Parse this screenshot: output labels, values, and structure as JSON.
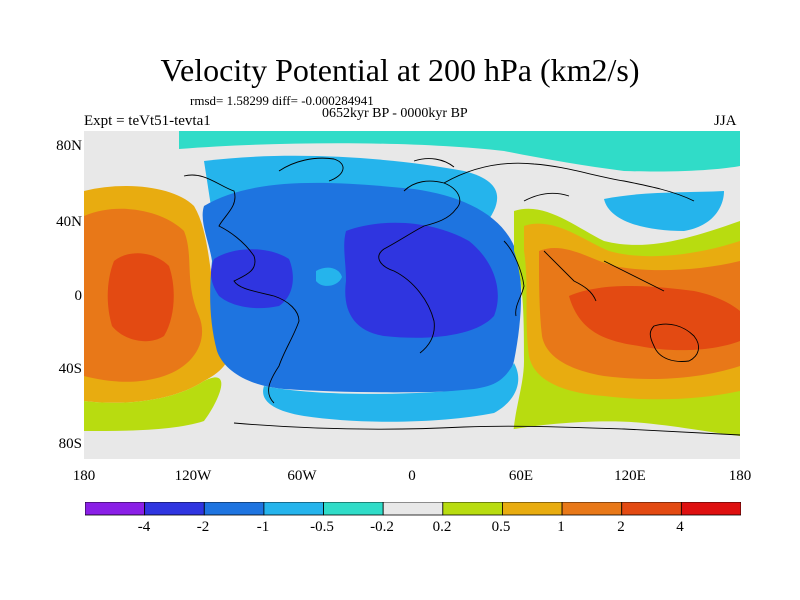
{
  "title": "Velocity Potential at 200 hPa (km2/s)",
  "stats": "rmsd= 1.58299  diff= -0.000284941",
  "period": "0652kyr BP - 0000kyr BP",
  "experiment": "Expt = teVt51-tevta1",
  "season": "JJA",
  "y_axis_labels": [
    "80N",
    "40N",
    "0",
    "40S",
    "80S"
  ],
  "x_axis_labels": [
    "180",
    "120W",
    "60W",
    "0",
    "60E",
    "120E",
    "180"
  ],
  "colorbar": {
    "tick_labels": [
      "-4",
      "-2",
      "-1",
      "-0.5",
      "-0.2",
      "0.2",
      "0.5",
      "1",
      "2",
      "4"
    ],
    "colors": [
      "#8a1fe6",
      "#2f35e0",
      "#1e74e0",
      "#25b4ec",
      "#30dcc8",
      "#e8e8e8",
      "#b8dc10",
      "#e8ac10",
      "#e87818",
      "#e34a12",
      "#de1010"
    ]
  },
  "map_colors": {
    "ocean_base": "#e8e8e8",
    "deep_negative": "#2f35e0",
    "negative": "#1e74e0",
    "weak_negative": "#25b4ec",
    "near_zero_negative": "#30dcc8",
    "weak_positive": "#b8dc10",
    "positive": "#e8ac10",
    "strong_positive": "#e87818",
    "very_strong_positive": "#e34a12",
    "coastline": "#000000"
  }
}
